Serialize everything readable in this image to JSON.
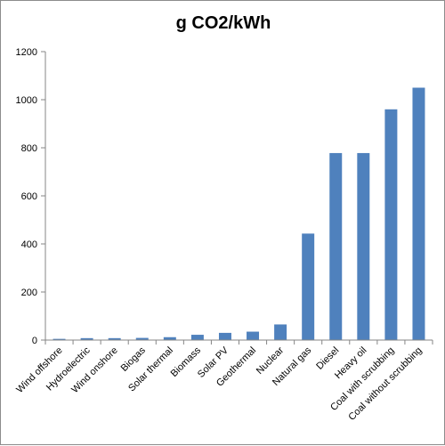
{
  "chart_data": {
    "type": "bar",
    "title": "g CO2/kWh",
    "xlabel": "",
    "ylabel": "",
    "ylim": [
      0,
      1200
    ],
    "yticks": [
      0,
      200,
      400,
      600,
      800,
      1000,
      1200
    ],
    "grid": false,
    "legend": "none",
    "bar_color": "#4f81bd",
    "categories": [
      "Wind offshore",
      "Hydroelectric",
      "Wind onshore",
      "Biogas",
      "Solar thermal",
      "Biomass",
      "Solar PV",
      "Geothermal",
      "Nuclear",
      "Natural gas",
      "Diesel",
      "Heavy oil",
      "Coal with scrubbing",
      "Coal without scrubbing"
    ],
    "values": [
      5,
      8,
      8,
      9,
      12,
      22,
      30,
      35,
      65,
      443,
      778,
      778,
      960,
      1050
    ]
  }
}
